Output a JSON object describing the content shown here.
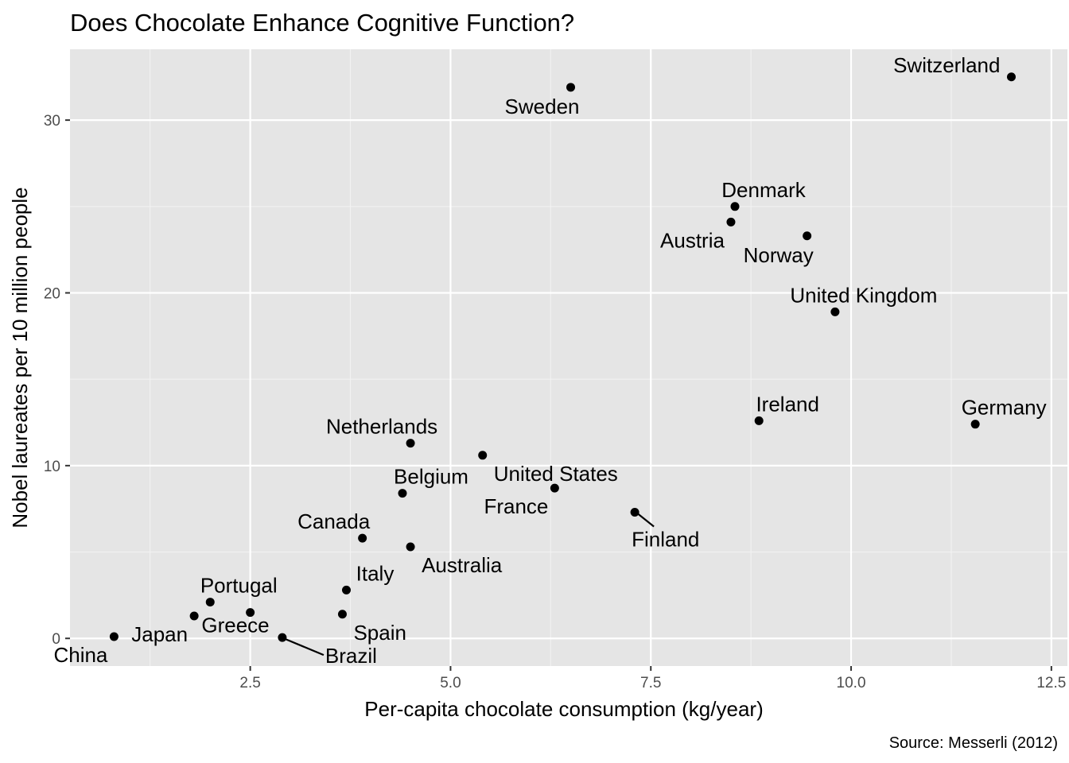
{
  "chart_data": {
    "type": "scatter",
    "title": "Does Chocolate Enhance Cognitive Function?",
    "xlabel": "Per-capita chocolate consumption (kg/year)",
    "ylabel": "Nobel laureates per 10 million people",
    "caption": "Source: Messerli (2012)",
    "xlim": [
      0.25,
      12.7
    ],
    "ylim": [
      -1.6,
      34.1
    ],
    "x_ticks": [
      2.5,
      5.0,
      7.5,
      10.0,
      12.5
    ],
    "x_tick_labels": [
      "2.5",
      "5.0",
      "7.5",
      "10.0",
      "12.5"
    ],
    "y_ticks": [
      0,
      10,
      20,
      30
    ],
    "y_tick_labels": [
      "0",
      "10",
      "20",
      "30"
    ],
    "grid": true,
    "point_color": "#000000",
    "panel_color": "#e5e5e5",
    "points": [
      {
        "label": "Switzerland",
        "x": 12.0,
        "y": 32.5,
        "label_pos": "upper-left"
      },
      {
        "label": "Sweden",
        "x": 6.5,
        "y": 31.9,
        "label_pos": "below"
      },
      {
        "label": "Denmark",
        "x": 8.55,
        "y": 25.0,
        "label_pos": "above"
      },
      {
        "label": "Austria",
        "x": 8.5,
        "y": 24.1,
        "label_pos": "lower-left"
      },
      {
        "label": "Norway",
        "x": 9.45,
        "y": 23.3,
        "label_pos": "below"
      },
      {
        "label": "United Kingdom",
        "x": 9.8,
        "y": 18.9,
        "label_pos": "above"
      },
      {
        "label": "Ireland",
        "x": 8.85,
        "y": 12.6,
        "label_pos": "above"
      },
      {
        "label": "Germany",
        "x": 11.55,
        "y": 12.4,
        "label_pos": "above"
      },
      {
        "label": "Netherlands",
        "x": 4.5,
        "y": 11.3,
        "label_pos": "above-left"
      },
      {
        "label": "United States",
        "x": 5.4,
        "y": 10.6,
        "label_pos": "lower-right"
      },
      {
        "label": "France",
        "x": 6.3,
        "y": 8.7,
        "label_pos": "lower-left"
      },
      {
        "label": "Belgium",
        "x": 4.4,
        "y": 8.4,
        "label_pos": "above-right"
      },
      {
        "label": "Finland",
        "x": 7.3,
        "y": 7.3,
        "label_pos": "leader-lower-right"
      },
      {
        "label": "Canada",
        "x": 3.9,
        "y": 5.8,
        "label_pos": "above-left"
      },
      {
        "label": "Australia",
        "x": 4.5,
        "y": 5.3,
        "label_pos": "lower-right"
      },
      {
        "label": "Italy",
        "x": 3.7,
        "y": 2.8,
        "label_pos": "above-right"
      },
      {
        "label": "Portugal",
        "x": 2.0,
        "y": 2.1,
        "label_pos": "above-right"
      },
      {
        "label": "Greece",
        "x": 2.5,
        "y": 1.5,
        "label_pos": "below-left"
      },
      {
        "label": "Japan",
        "x": 1.8,
        "y": 1.3,
        "label_pos": "lower-left"
      },
      {
        "label": "Spain",
        "x": 3.65,
        "y": 1.4,
        "label_pos": "lower-right"
      },
      {
        "label": "China",
        "x": 0.8,
        "y": 0.1,
        "label_pos": "lower-left"
      },
      {
        "label": "Brazil",
        "x": 2.9,
        "y": 0.05,
        "label_pos": "leader-lower-right"
      }
    ]
  }
}
